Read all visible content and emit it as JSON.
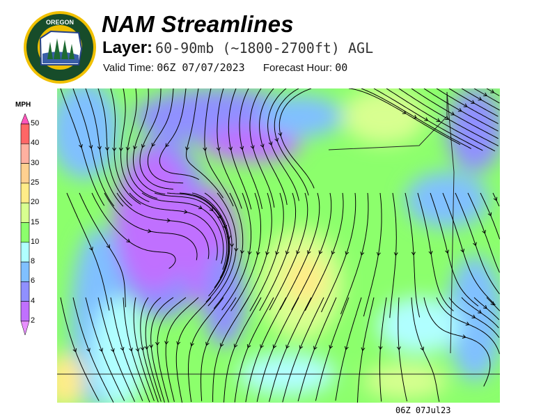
{
  "header": {
    "title": "NAM Streamlines",
    "layer_label": "Layer:",
    "layer_value": "60-90mb (~1800-2700ft) AGL",
    "valid_time_label": "Valid Time:",
    "valid_time_value": "06Z 07/07/2023",
    "forecast_hour_label": "Forecast Hour:",
    "forecast_hour_value": "00"
  },
  "logo": {
    "text_top": "OREGON",
    "text_bottom": "DEPARTMENT OF FORESTRY"
  },
  "legend": {
    "unit": "MPH",
    "ticks": [
      "50",
      "40",
      "30",
      "25",
      "20",
      "15",
      "10",
      "8",
      "6",
      "4",
      "2"
    ],
    "colors": [
      "#ff6666",
      "#ffb0a0",
      "#ffd090",
      "#ffec88",
      "#d8ff90",
      "#8cff6c",
      "#b0ffff",
      "#80c0ff",
      "#9090ff",
      "#c070ff"
    ],
    "over_color": "#ff55bb",
    "under_color": "#e890ff"
  },
  "map": {
    "timestamp": "06Z 07Jul23"
  }
}
